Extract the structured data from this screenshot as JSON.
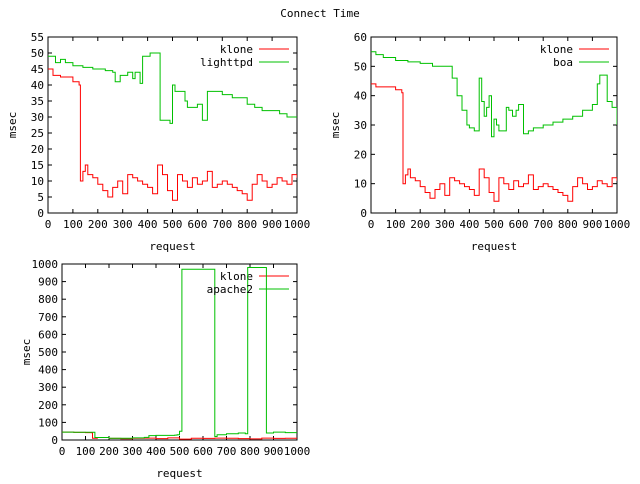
{
  "title": "Connect Time",
  "chart_data": [
    {
      "type": "line",
      "xlabel": "request",
      "ylabel": "msec",
      "xlim": [
        0,
        1000
      ],
      "ylim": [
        0,
        55
      ],
      "xticks": [
        0,
        100,
        200,
        300,
        400,
        500,
        600,
        700,
        800,
        900,
        1000
      ],
      "yticks": [
        0,
        5,
        10,
        15,
        20,
        25,
        30,
        35,
        40,
        45,
        50,
        55
      ],
      "grid": false,
      "legend_position": "top-right",
      "series": [
        {
          "name": "klone",
          "color": "#ff0000",
          "x": [
            0,
            20,
            50,
            100,
            125,
            130,
            140,
            150,
            160,
            180,
            200,
            220,
            240,
            260,
            280,
            300,
            320,
            340,
            360,
            380,
            400,
            420,
            440,
            460,
            480,
            500,
            520,
            540,
            560,
            580,
            600,
            620,
            640,
            660,
            680,
            700,
            720,
            740,
            760,
            780,
            800,
            820,
            840,
            860,
            880,
            900,
            920,
            940,
            960,
            980,
            1000
          ],
          "y": [
            45,
            43,
            42.5,
            41,
            40,
            10,
            13,
            15,
            12,
            11,
            9,
            7,
            5,
            8,
            10,
            6,
            12,
            11,
            10,
            9,
            8,
            6,
            15,
            12,
            7,
            4,
            12,
            10,
            8,
            11,
            9,
            10,
            13,
            8,
            9,
            10,
            9,
            8,
            7,
            6,
            4,
            9,
            12,
            10,
            8,
            9,
            11,
            10,
            9,
            12,
            11
          ]
        },
        {
          "name": "lighttpd",
          "color": "#00c000",
          "x": [
            0,
            10,
            30,
            50,
            70,
            100,
            140,
            180,
            230,
            260,
            270,
            290,
            320,
            340,
            350,
            370,
            380,
            410,
            440,
            450,
            480,
            490,
            500,
            510,
            550,
            560,
            600,
            620,
            640,
            680,
            700,
            740,
            780,
            800,
            830,
            860,
            900,
            930,
            960,
            1000
          ],
          "y": [
            49,
            49,
            47,
            48,
            47,
            46,
            45.5,
            45,
            44.5,
            44,
            41,
            43,
            44,
            42,
            44,
            40.5,
            49,
            50,
            50,
            29,
            29,
            28,
            40,
            38,
            35,
            33,
            34,
            29,
            38,
            38,
            37,
            36,
            36,
            34,
            33,
            32,
            32,
            31,
            30,
            30
          ]
        }
      ]
    },
    {
      "type": "line",
      "xlabel": "request",
      "ylabel": "msec",
      "xlim": [
        0,
        1000
      ],
      "ylim": [
        0,
        60
      ],
      "xticks": [
        0,
        100,
        200,
        300,
        400,
        500,
        600,
        700,
        800,
        900,
        1000
      ],
      "yticks": [
        0,
        10,
        20,
        30,
        40,
        50,
        60
      ],
      "grid": false,
      "legend_position": "top-right",
      "series": [
        {
          "name": "klone",
          "color": "#ff0000",
          "x": [
            0,
            20,
            50,
            100,
            125,
            130,
            140,
            150,
            160,
            180,
            200,
            220,
            240,
            260,
            280,
            300,
            320,
            340,
            360,
            380,
            400,
            420,
            440,
            460,
            480,
            500,
            520,
            540,
            560,
            580,
            600,
            620,
            640,
            660,
            680,
            700,
            720,
            740,
            760,
            780,
            800,
            820,
            840,
            860,
            880,
            900,
            920,
            940,
            960,
            980,
            1000
          ],
          "y": [
            44,
            43,
            43,
            42,
            41,
            10,
            13,
            15,
            12,
            11,
            9,
            7,
            5,
            8,
            10,
            6,
            12,
            11,
            10,
            9,
            8,
            6,
            15,
            12,
            7,
            4,
            12,
            10,
            8,
            11,
            9,
            10,
            13,
            8,
            9,
            10,
            9,
            8,
            7,
            6,
            4,
            9,
            12,
            10,
            8,
            9,
            11,
            10,
            9,
            12,
            11
          ]
        },
        {
          "name": "boa",
          "color": "#00c000",
          "x": [
            0,
            20,
            50,
            100,
            150,
            200,
            250,
            300,
            330,
            350,
            370,
            390,
            400,
            420,
            440,
            450,
            460,
            470,
            480,
            490,
            500,
            510,
            520,
            540,
            550,
            560,
            575,
            590,
            600,
            620,
            640,
            660,
            700,
            740,
            780,
            820,
            860,
            900,
            920,
            930,
            960,
            980,
            1000
          ],
          "y": [
            55,
            54,
            53,
            52,
            51.5,
            51,
            50,
            50,
            46,
            40,
            35,
            30,
            29,
            28,
            46,
            38,
            33,
            36,
            40,
            26,
            32,
            30,
            28,
            28,
            36,
            35,
            33,
            35,
            37,
            27,
            28,
            29,
            30,
            31,
            32,
            33,
            35,
            37,
            44,
            47,
            38,
            36,
            30
          ]
        }
      ]
    },
    {
      "type": "line",
      "xlabel": "request",
      "ylabel": "msec",
      "xlim": [
        0,
        1000
      ],
      "ylim": [
        0,
        1000
      ],
      "xticks": [
        0,
        100,
        200,
        300,
        400,
        500,
        600,
        700,
        800,
        900,
        1000
      ],
      "yticks": [
        0,
        100,
        200,
        300,
        400,
        500,
        600,
        700,
        800,
        900,
        1000
      ],
      "grid": false,
      "legend_position": "top-right",
      "series": [
        {
          "name": "klone",
          "color": "#ff0000",
          "x": [
            0,
            50,
            100,
            125,
            130,
            150,
            200,
            250,
            300,
            350,
            400,
            450,
            500,
            550,
            600,
            650,
            700,
            750,
            800,
            850,
            900,
            950,
            1000
          ],
          "y": [
            45,
            43,
            42,
            41,
            10,
            14,
            9,
            7,
            10,
            11,
            8,
            12,
            5,
            10,
            9,
            11,
            10,
            8,
            6,
            11,
            9,
            10,
            11
          ]
        },
        {
          "name": "apache2",
          "color": "#00c000",
          "x": [
            0,
            50,
            100,
            130,
            140,
            200,
            300,
            350,
            370,
            400,
            480,
            490,
            500,
            510,
            640,
            650,
            660,
            700,
            750,
            780,
            790,
            800,
            850,
            860,
            870,
            890,
            900,
            950,
            1000
          ],
          "y": [
            45,
            44,
            44,
            44,
            14,
            10,
            12,
            15,
            25,
            26,
            28,
            30,
            50,
            970,
            970,
            20,
            30,
            35,
            40,
            35,
            980,
            980,
            980,
            980,
            40,
            40,
            45,
            42,
            40
          ]
        }
      ]
    }
  ]
}
